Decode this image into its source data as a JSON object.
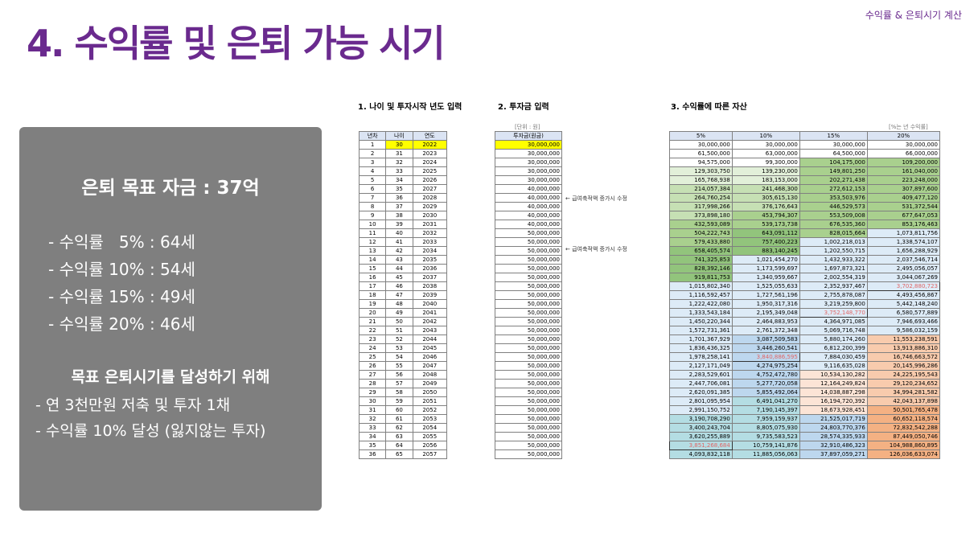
{
  "title": "4. 수익률 및 은퇴 가능 시기",
  "corner_label": "수익률 & 은퇴시기 계산",
  "panel": {
    "goal": "은퇴 목표 자금 : 37억",
    "rates": [
      "- 수익률   5% : 64세",
      "- 수익률 10% : 54세",
      "- 수익률 15% : 49세",
      "- 수익률 20% : 46세"
    ],
    "achieve_title": "목표 은퇴시기를 달성하기 위해",
    "actions": [
      "- 연 3천만원 저축 및 투자 1채",
      "- 수익률 10% 달성 (잃지않는 투자)"
    ]
  },
  "sections": {
    "s1": "1. 나이 및 투자시작 년도 입력",
    "s2": "2. 투자금 입력",
    "s3": "3. 수익률에 따른 자산"
  },
  "units": {
    "invest": "[단위 : 원]",
    "rate": "[%는 년 수익률]"
  },
  "notes": [
    "← 급여축적액 증가시 수정",
    "← 급여축적액 증가시 수정"
  ],
  "headers": {
    "a": [
      "년차",
      "나이",
      "연도"
    ],
    "b": "투자금(원금)",
    "c": [
      "5%",
      "10%",
      "15%",
      "20%"
    ]
  },
  "rows": [
    [
      "1",
      "30",
      "2022",
      "30,000,000",
      "30,000,000",
      "30,000,000",
      "30,000,000",
      "30,000,000"
    ],
    [
      "2",
      "31",
      "2023",
      "30,000,000",
      "61,500,000",
      "63,000,000",
      "64,500,000",
      "66,000,000"
    ],
    [
      "3",
      "32",
      "2024",
      "30,000,000",
      "94,575,000",
      "99,300,000",
      "104,175,000",
      "109,200,000"
    ],
    [
      "4",
      "33",
      "2025",
      "30,000,000",
      "129,303,750",
      "139,230,000",
      "149,801,250",
      "161,040,000"
    ],
    [
      "5",
      "34",
      "2026",
      "30,000,000",
      "165,768,938",
      "183,153,000",
      "202,271,438",
      "223,248,000"
    ],
    [
      "6",
      "35",
      "2027",
      "40,000,000",
      "214,057,384",
      "241,468,300",
      "272,612,153",
      "307,897,600"
    ],
    [
      "7",
      "36",
      "2028",
      "40,000,000",
      "264,760,254",
      "305,615,130",
      "353,503,976",
      "409,477,120"
    ],
    [
      "8",
      "37",
      "2029",
      "40,000,000",
      "317,998,266",
      "376,176,643",
      "446,529,573",
      "531,372,544"
    ],
    [
      "9",
      "38",
      "2030",
      "40,000,000",
      "373,898,180",
      "453,794,307",
      "553,509,008",
      "677,647,053"
    ],
    [
      "10",
      "39",
      "2031",
      "40,000,000",
      "432,593,089",
      "539,173,738",
      "676,535,360",
      "853,176,463"
    ],
    [
      "11",
      "40",
      "2032",
      "50,000,000",
      "504,222,743",
      "643,091,112",
      "828,015,664",
      "1,073,811,756"
    ],
    [
      "12",
      "41",
      "2033",
      "50,000,000",
      "579,433,880",
      "757,400,223",
      "1,002,218,013",
      "1,338,574,107"
    ],
    [
      "13",
      "42",
      "2034",
      "50,000,000",
      "658,405,574",
      "883,140,245",
      "1,202,550,715",
      "1,656,288,929"
    ],
    [
      "14",
      "43",
      "2035",
      "50,000,000",
      "741,325,853",
      "1,021,454,270",
      "1,432,933,322",
      "2,037,546,714"
    ],
    [
      "15",
      "44",
      "2036",
      "50,000,000",
      "828,392,146",
      "1,173,599,697",
      "1,697,873,321",
      "2,495,056,057"
    ],
    [
      "16",
      "45",
      "2037",
      "50,000,000",
      "919,811,753",
      "1,340,959,667",
      "2,002,554,319",
      "3,044,067,269"
    ],
    [
      "17",
      "46",
      "2038",
      "50,000,000",
      "1,015,802,340",
      "1,525,055,633",
      "2,352,937,467",
      "3,702,880,723"
    ],
    [
      "18",
      "47",
      "2039",
      "50,000,000",
      "1,116,592,457",
      "1,727,561,196",
      "2,755,878,087",
      "4,493,456,867"
    ],
    [
      "19",
      "48",
      "2040",
      "50,000,000",
      "1,222,422,080",
      "1,950,317,316",
      "3,219,259,800",
      "5,442,148,240"
    ],
    [
      "20",
      "49",
      "2041",
      "50,000,000",
      "1,333,543,184",
      "2,195,349,048",
      "3,752,148,770",
      "6,580,577,889"
    ],
    [
      "21",
      "50",
      "2042",
      "50,000,000",
      "1,450,220,344",
      "2,464,883,953",
      "4,364,971,085",
      "7,946,693,466"
    ],
    [
      "22",
      "51",
      "2043",
      "50,000,000",
      "1,572,731,361",
      "2,761,372,348",
      "5,069,716,748",
      "9,586,032,159"
    ],
    [
      "23",
      "52",
      "2044",
      "50,000,000",
      "1,701,367,929",
      "3,087,509,583",
      "5,880,174,260",
      "11,553,238,591"
    ],
    [
      "24",
      "53",
      "2045",
      "50,000,000",
      "1,836,436,325",
      "3,446,260,541",
      "6,812,200,399",
      "13,913,886,310"
    ],
    [
      "25",
      "54",
      "2046",
      "50,000,000",
      "1,978,258,141",
      "3,840,886,595",
      "7,884,030,459",
      "16,746,663,572"
    ],
    [
      "26",
      "55",
      "2047",
      "50,000,000",
      "2,127,171,049",
      "4,274,975,254",
      "9,116,635,028",
      "20,145,996,286"
    ],
    [
      "27",
      "56",
      "2048",
      "50,000,000",
      "2,283,529,601",
      "4,752,472,780",
      "10,534,130,282",
      "24,225,195,543"
    ],
    [
      "28",
      "57",
      "2049",
      "50,000,000",
      "2,447,706,081",
      "5,277,720,058",
      "12,164,249,824",
      "29,120,234,652"
    ],
    [
      "29",
      "58",
      "2050",
      "50,000,000",
      "2,620,091,385",
      "5,855,492,064",
      "14,038,887,298",
      "34,994,281,582"
    ],
    [
      "30",
      "59",
      "2051",
      "50,000,000",
      "2,801,095,954",
      "6,491,041,270",
      "16,194,720,392",
      "42,043,137,898"
    ],
    [
      "31",
      "60",
      "2052",
      "50,000,000",
      "2,991,150,752",
      "7,190,145,397",
      "18,673,928,451",
      "50,501,765,478"
    ],
    [
      "32",
      "61",
      "2053",
      "50,000,000",
      "3,190,708,290",
      "7,959,159,937",
      "21,525,017,719",
      "60,652,118,574"
    ],
    [
      "33",
      "62",
      "2054",
      "50,000,000",
      "3,400,243,704",
      "8,805,075,930",
      "24,803,770,376",
      "72,832,542,288"
    ],
    [
      "34",
      "63",
      "2055",
      "50,000,000",
      "3,620,255,889",
      "9,735,583,523",
      "28,574,335,933",
      "87,449,050,746"
    ],
    [
      "35",
      "64",
      "2056",
      "50,000,000",
      "3,851,268,684",
      "10,759,141,876",
      "32,910,486,323",
      "104,988,860,895"
    ],
    [
      "36",
      "65",
      "2057",
      "50,000,000",
      "4,093,832,118",
      "11,885,056,063",
      "37,897,059,271",
      "126,036,633,074"
    ]
  ],
  "colors": {
    "title": "#6a2a8e",
    "panel": "#7f7f7f",
    "highlight_input": "#ffff00",
    "header": "#dbe4f3",
    "target_text": "#e06666"
  }
}
